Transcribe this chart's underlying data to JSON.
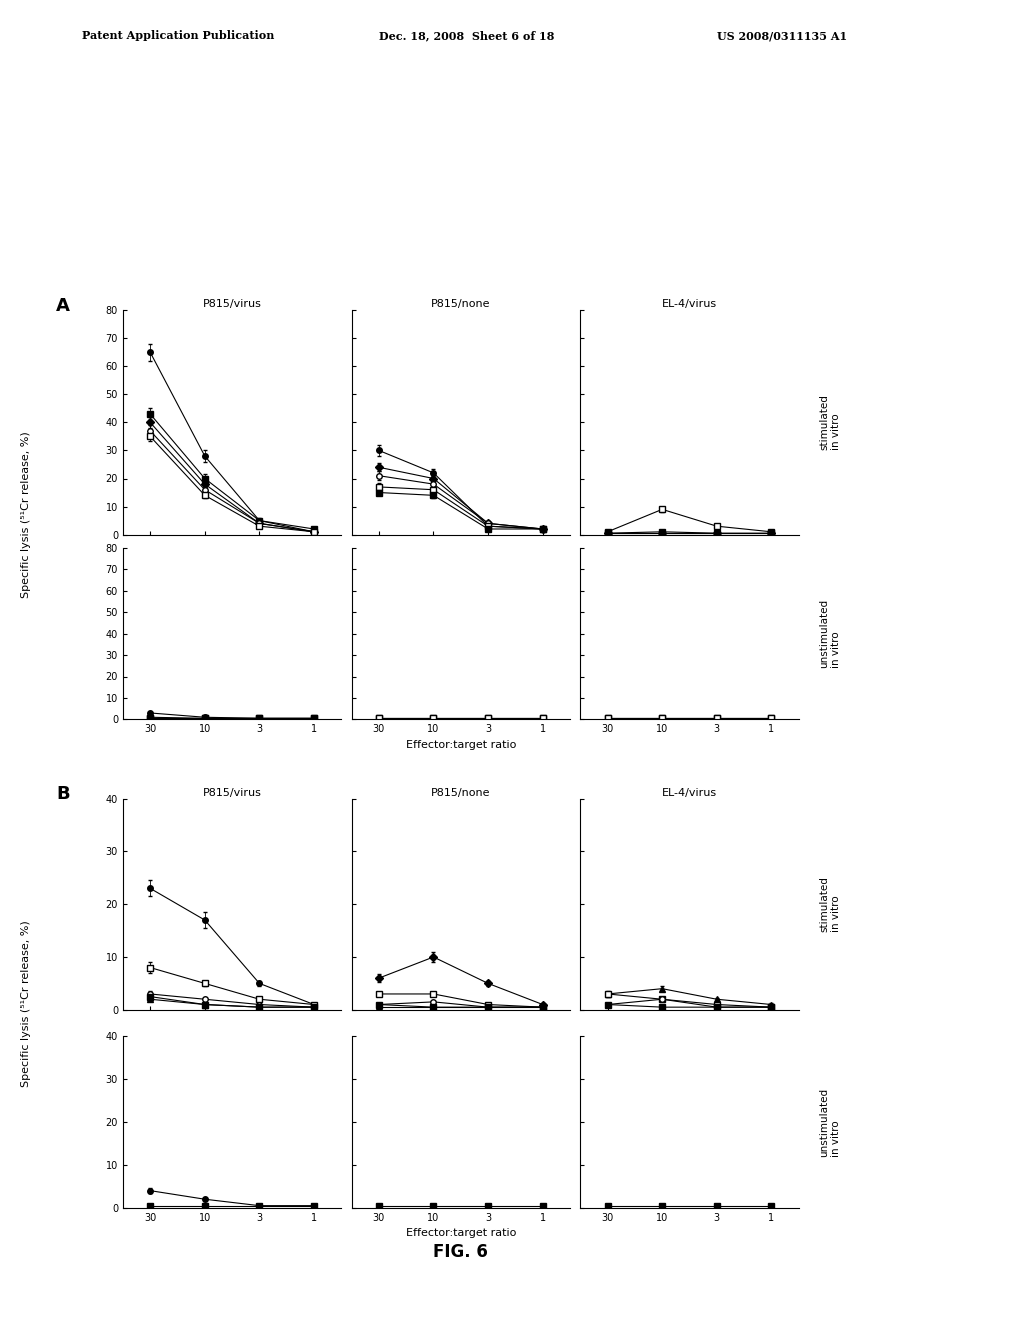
{
  "header_left": "Patent Application Publication",
  "header_mid": "Dec. 18, 2008  Sheet 6 of 18",
  "header_right": "US 2008/0311135 A1",
  "fig_label": "FIG. 6",
  "x_ticks": [
    30,
    10,
    3,
    1
  ],
  "x_positions": [
    0,
    1,
    2,
    3
  ],
  "x_label": "Effector:target ratio",
  "y_label": "Specific lysis (⁵¹Cr release, %)",
  "col_titles": [
    "P815/virus",
    "P815/none",
    "EL-4/virus"
  ],
  "panel_A": {
    "label": "A",
    "ylim_stim": [
      0,
      80
    ],
    "ylim_unstim": [
      0,
      80
    ],
    "yticks_stim": [
      0,
      10,
      20,
      30,
      40,
      50,
      60,
      70,
      80
    ],
    "yticks_unstim": [
      0,
      10,
      20,
      30,
      40,
      50,
      60,
      70,
      80
    ],
    "stimulated": {
      "P815_virus": {
        "series": [
          {
            "marker": "filled_circle",
            "y": [
              65,
              28,
              5,
              1
            ],
            "yerr": [
              3,
              2,
              1,
              0.3
            ]
          },
          {
            "marker": "filled_square",
            "y": [
              43,
              20,
              5,
              2
            ],
            "yerr": [
              2,
              1.5,
              0.5,
              0.3
            ]
          },
          {
            "marker": "filled_diamond",
            "y": [
              40,
              18,
              4,
              1
            ],
            "yerr": [
              2,
              1,
              0.5,
              0.3
            ]
          },
          {
            "marker": "open_circle",
            "y": [
              37,
              16,
              4,
              1
            ],
            "yerr": [
              2,
              1,
              0.5,
              0.3
            ]
          },
          {
            "marker": "open_square",
            "y": [
              35,
              14,
              3,
              1
            ],
            "yerr": [
              1.5,
              1,
              0.4,
              0.2
            ]
          }
        ]
      },
      "P815_none": {
        "series": [
          {
            "marker": "filled_circle",
            "y": [
              30,
              22,
              3,
              2
            ],
            "yerr": [
              2,
              1.5,
              0.5,
              0.3
            ]
          },
          {
            "marker": "filled_diamond",
            "y": [
              24,
              20,
              4,
              2
            ],
            "yerr": [
              1.5,
              1,
              0.5,
              0.3
            ]
          },
          {
            "marker": "open_circle",
            "y": [
              21,
              18,
              4,
              2
            ],
            "yerr": [
              1.5,
              1,
              0.5,
              0.3
            ]
          },
          {
            "marker": "open_square",
            "y": [
              17,
              16,
              3,
              2
            ],
            "yerr": [
              1.5,
              1,
              0.5,
              0.3
            ]
          },
          {
            "marker": "filled_square",
            "y": [
              15,
              14,
              2,
              2
            ],
            "yerr": [
              1,
              1,
              0.4,
              0.2
            ]
          }
        ]
      },
      "EL4_virus": {
        "series": [
          {
            "marker": "open_square",
            "y": [
              1,
              9,
              3,
              1
            ],
            "yerr": [
              0.5,
              1,
              0.5,
              0.3
            ]
          },
          {
            "marker": "filled_square",
            "y": [
              0.5,
              1,
              0.5,
              0.5
            ],
            "yerr": [
              0.2,
              0.3,
              0.2,
              0.2
            ]
          },
          {
            "marker": "filled_circle",
            "y": [
              0.5,
              0.5,
              0.5,
              0.5
            ],
            "yerr": [
              0.2,
              0.2,
              0.2,
              0.2
            ]
          },
          {
            "marker": "filled_diamond",
            "y": [
              0.5,
              0.5,
              0.5,
              0.5
            ],
            "yerr": [
              0.2,
              0.2,
              0.2,
              0.2
            ]
          }
        ]
      }
    },
    "unstimulated": {
      "P815_virus": {
        "series": [
          {
            "marker": "filled_circle",
            "y": [
              3,
              1,
              0.5,
              0.5
            ],
            "yerr": [
              0.5,
              0.3,
              0.2,
              0.2
            ]
          },
          {
            "marker": "filled_triangle",
            "y": [
              1,
              0.5,
              0.5,
              0.5
            ],
            "yerr": [
              0.3,
              0.2,
              0.2,
              0.2
            ]
          },
          {
            "marker": "open_square",
            "y": [
              0.5,
              0.5,
              0.5,
              0.5
            ],
            "yerr": [
              0.2,
              0.2,
              0.2,
              0.2
            ]
          },
          {
            "marker": "filled_square",
            "y": [
              0.5,
              0.5,
              0.5,
              0.5
            ],
            "yerr": [
              0.2,
              0.2,
              0.2,
              0.2
            ]
          }
        ]
      },
      "P815_none": {
        "series": [
          {
            "marker": "filled_square",
            "y": [
              0.5,
              0.5,
              0.5,
              0.5
            ],
            "yerr": [
              0.2,
              0.2,
              0.2,
              0.2
            ]
          },
          {
            "marker": "filled_circle",
            "y": [
              0.5,
              0.5,
              0.5,
              0.5
            ],
            "yerr": [
              0.2,
              0.2,
              0.2,
              0.2
            ]
          },
          {
            "marker": "open_square",
            "y": [
              0.5,
              0.5,
              0.5,
              0.5
            ],
            "yerr": [
              0.2,
              0.2,
              0.2,
              0.2
            ]
          }
        ]
      },
      "EL4_virus": {
        "series": [
          {
            "marker": "filled_square",
            "y": [
              0.5,
              0.5,
              0.5,
              0.5
            ],
            "yerr": [
              0.2,
              0.2,
              0.2,
              0.2
            ]
          },
          {
            "marker": "filled_circle",
            "y": [
              0.5,
              0.5,
              0.5,
              0.5
            ],
            "yerr": [
              0.2,
              0.2,
              0.2,
              0.2
            ]
          },
          {
            "marker": "open_square",
            "y": [
              0.5,
              0.5,
              0.5,
              0.5
            ],
            "yerr": [
              0.2,
              0.2,
              0.2,
              0.2
            ]
          }
        ]
      }
    }
  },
  "panel_B": {
    "label": "B",
    "ylim_stim": [
      0,
      40
    ],
    "ylim_unstim": [
      0,
      40
    ],
    "yticks_stim": [
      0,
      10,
      20,
      30,
      40
    ],
    "yticks_unstim": [
      0,
      10,
      20,
      30,
      40
    ],
    "stimulated": {
      "P815_virus": {
        "series": [
          {
            "marker": "filled_circle",
            "y": [
              23,
              17,
              5,
              1
            ],
            "yerr": [
              1.5,
              1.5,
              0.5,
              0.3
            ]
          },
          {
            "marker": "open_square",
            "y": [
              8,
              5,
              2,
              1
            ],
            "yerr": [
              1,
              0.5,
              0.3,
              0.2
            ]
          },
          {
            "marker": "open_circle",
            "y": [
              3,
              2,
              1,
              0.5
            ],
            "yerr": [
              0.5,
              0.3,
              0.2,
              0.2
            ]
          },
          {
            "marker": "filled_square",
            "y": [
              2.5,
              1,
              0.5,
              0.5
            ],
            "yerr": [
              0.4,
              0.3,
              0.2,
              0.2
            ]
          },
          {
            "marker": "filled_triangle",
            "y": [
              2,
              1,
              0.5,
              0.5
            ],
            "yerr": [
              0.3,
              0.2,
              0.2,
              0.2
            ]
          }
        ]
      },
      "P815_none": {
        "series": [
          {
            "marker": "filled_diamond",
            "y": [
              6,
              10,
              5,
              1
            ],
            "yerr": [
              0.8,
              1,
              0.5,
              0.3
            ]
          },
          {
            "marker": "open_square",
            "y": [
              3,
              3,
              1,
              0.5
            ],
            "yerr": [
              0.4,
              0.3,
              0.2,
              0.2
            ]
          },
          {
            "marker": "open_circle",
            "y": [
              1,
              1.5,
              0.5,
              0.5
            ],
            "yerr": [
              0.3,
              0.2,
              0.2,
              0.2
            ]
          },
          {
            "marker": "filled_square",
            "y": [
              1,
              0.5,
              0.5,
              0.5
            ],
            "yerr": [
              0.2,
              0.2,
              0.2,
              0.2
            ]
          },
          {
            "marker": "filled_triangle",
            "y": [
              0.5,
              0.5,
              0.5,
              0.5
            ],
            "yerr": [
              0.2,
              0.2,
              0.2,
              0.2
            ]
          }
        ]
      },
      "EL4_virus": {
        "series": [
          {
            "marker": "filled_triangle",
            "y": [
              3,
              4,
              2,
              1
            ],
            "yerr": [
              0.5,
              0.5,
              0.3,
              0.2
            ]
          },
          {
            "marker": "open_square",
            "y": [
              3,
              2,
              1,
              0.5
            ],
            "yerr": [
              0.4,
              0.3,
              0.2,
              0.2
            ]
          },
          {
            "marker": "open_circle",
            "y": [
              1,
              2,
              0.5,
              0.5
            ],
            "yerr": [
              0.3,
              0.3,
              0.2,
              0.2
            ]
          },
          {
            "marker": "filled_square",
            "y": [
              1,
              0.5,
              0.5,
              0.5
            ],
            "yerr": [
              0.2,
              0.2,
              0.2,
              0.2
            ]
          }
        ]
      }
    },
    "unstimulated": {
      "P815_virus": {
        "series": [
          {
            "marker": "filled_circle",
            "y": [
              4,
              2,
              0.5,
              0.5
            ],
            "yerr": [
              0.5,
              0.3,
              0.2,
              0.2
            ]
          },
          {
            "marker": "filled_square",
            "y": [
              0.5,
              0.5,
              0.5,
              0.5
            ],
            "yerr": [
              0.2,
              0.2,
              0.2,
              0.2
            ]
          }
        ]
      },
      "P815_none": {
        "series": [
          {
            "marker": "filled_square",
            "y": [
              0.5,
              0.5,
              0.5,
              0.5
            ],
            "yerr": [
              0.2,
              0.2,
              0.2,
              0.2
            ]
          }
        ]
      },
      "EL4_virus": {
        "series": [
          {
            "marker": "filled_square",
            "y": [
              0.5,
              0.5,
              0.5,
              0.5
            ],
            "yerr": [
              0.2,
              0.2,
              0.2,
              0.2
            ]
          }
        ]
      }
    }
  }
}
